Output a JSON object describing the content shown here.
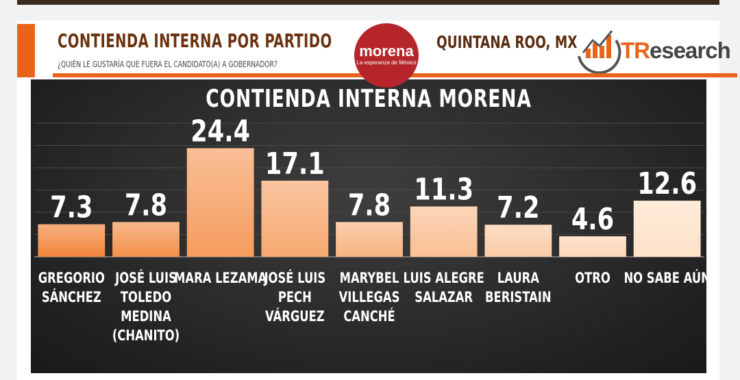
{
  "header": {
    "title": "CONTIENDA INTERNA POR PARTIDO",
    "question": "¿QUIÉN LE GUSTARÍA QUE FUERA EL CANDIDATO(A) A GOBERNADOR?",
    "party_logo": {
      "word": "morena",
      "tagline": "La esperanza de México"
    },
    "region": "QUINTANA ROO, MX",
    "brand": {
      "prefix": "TR",
      "suffix": "esearch"
    }
  },
  "colors": {
    "accent": "#e8641a",
    "title_brown": "#6b3210",
    "party_red": "#b5252a",
    "bar_dark": "#f2853a",
    "bar_light": "#fde2c8"
  },
  "chart_data": {
    "type": "bar",
    "title": "CONTIENDA INTERNA MORENA",
    "categories": [
      [
        "GREGORIO",
        "SÁNCHEZ"
      ],
      [
        "JOSÉ LUIS",
        "TOLEDO",
        "MEDINA",
        "(CHANITO)"
      ],
      [
        "MARA LEZAMA"
      ],
      [
        "JOSÉ LUIS",
        "PECH",
        "VÁRGUEZ"
      ],
      [
        "MARYBEL",
        "VILLEGAS",
        "CANCHÉ"
      ],
      [
        "LUIS ALEGRE",
        "SALAZAR"
      ],
      [
        "LAURA",
        "BERISTAIN"
      ],
      [
        "OTRO"
      ],
      [
        "NO SABE AÚN"
      ]
    ],
    "values": [
      7.3,
      7.8,
      24.4,
      17.1,
      7.8,
      11.3,
      7.2,
      4.6,
      12.6
    ],
    "data_labels": [
      "7.3",
      "7.8",
      "24.4",
      "17.1",
      "7.8",
      "11.3",
      "7.2",
      "4.6",
      "12.6"
    ],
    "ylim": [
      0,
      30
    ],
    "grid": true,
    "xlabel": "",
    "ylabel": ""
  }
}
